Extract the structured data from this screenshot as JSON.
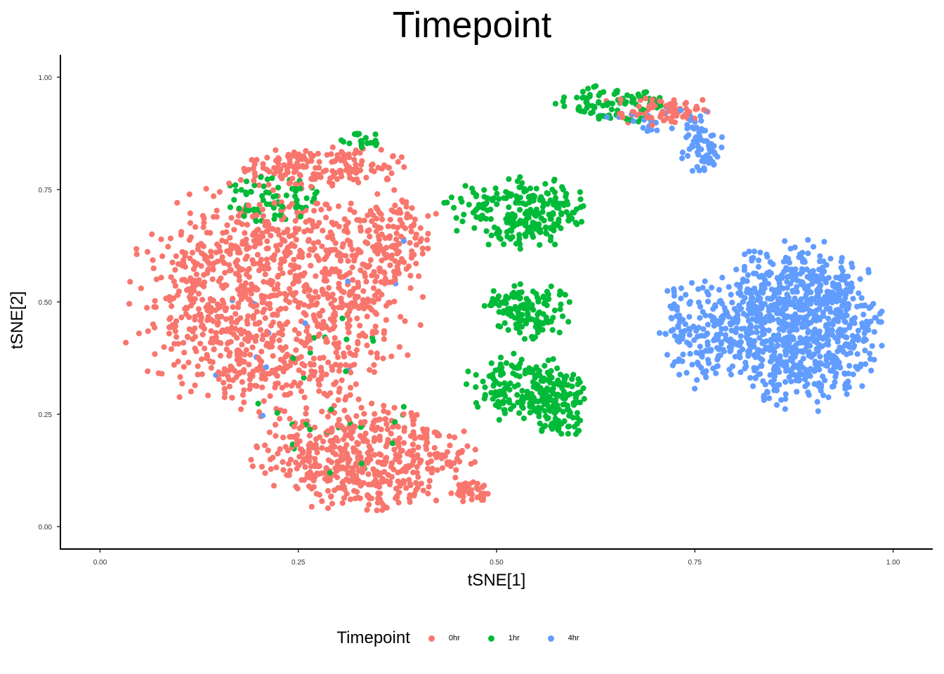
{
  "chart_data": {
    "type": "scatter",
    "title": "Timepoint",
    "xlabel": "tSNE[1]",
    "ylabel": "tSNE[2]",
    "xlim": [
      -0.05,
      1.05
    ],
    "ylim": [
      -0.05,
      1.05
    ],
    "x_ticks": [
      "0.00",
      "0.25",
      "0.50",
      "0.75",
      "1.00"
    ],
    "y_ticks": [
      "0.00",
      "0.25",
      "0.50",
      "0.75",
      "1.00"
    ],
    "grid": false,
    "legend": {
      "title": "Timepoint",
      "position": "bottom",
      "entries": [
        "0hr",
        "1hr",
        "4hr"
      ]
    },
    "series": [
      {
        "name": "0hr",
        "color": "#F8766D"
      },
      {
        "name": "1hr",
        "color": "#00BA38"
      },
      {
        "name": "4hr",
        "color": "#619CFF"
      }
    ],
    "clusters": [
      {
        "series": "0hr",
        "cx": 0.22,
        "cy": 0.5,
        "rx": 0.2,
        "ry": 0.3,
        "n": 1100
      },
      {
        "series": "0hr",
        "cx": 0.33,
        "cy": 0.15,
        "rx": 0.15,
        "ry": 0.13,
        "n": 500
      },
      {
        "series": "0hr",
        "cx": 0.28,
        "cy": 0.8,
        "rx": 0.12,
        "ry": 0.05,
        "n": 160
      },
      {
        "series": "0hr",
        "cx": 0.37,
        "cy": 0.65,
        "rx": 0.06,
        "ry": 0.12,
        "n": 120
      },
      {
        "series": "0hr",
        "cx": 0.47,
        "cy": 0.08,
        "rx": 0.03,
        "ry": 0.03,
        "n": 40
      },
      {
        "series": "0hr",
        "cx": 0.7,
        "cy": 0.93,
        "rx": 0.08,
        "ry": 0.04,
        "n": 80
      },
      {
        "series": "1hr",
        "cx": 0.53,
        "cy": 0.7,
        "rx": 0.1,
        "ry": 0.09,
        "n": 240
      },
      {
        "series": "1hr",
        "cx": 0.54,
        "cy": 0.48,
        "rx": 0.06,
        "ry": 0.07,
        "n": 130
      },
      {
        "series": "1hr",
        "cx": 0.53,
        "cy": 0.31,
        "rx": 0.08,
        "ry": 0.08,
        "n": 170
      },
      {
        "series": "1hr",
        "cx": 0.58,
        "cy": 0.27,
        "rx": 0.04,
        "ry": 0.09,
        "n": 110
      },
      {
        "series": "1hr",
        "cx": 0.22,
        "cy": 0.73,
        "rx": 0.07,
        "ry": 0.07,
        "n": 70
      },
      {
        "series": "1hr",
        "cx": 0.65,
        "cy": 0.94,
        "rx": 0.08,
        "ry": 0.05,
        "n": 90
      },
      {
        "series": "1hr",
        "cx": 0.33,
        "cy": 0.86,
        "rx": 0.03,
        "ry": 0.03,
        "n": 20
      },
      {
        "series": "1hr",
        "cx": 0.3,
        "cy": 0.3,
        "rx": 0.12,
        "ry": 0.25,
        "n": 30
      },
      {
        "series": "4hr",
        "cx": 0.88,
        "cy": 0.45,
        "rx": 0.12,
        "ry": 0.2,
        "n": 900
      },
      {
        "series": "4hr",
        "cx": 0.76,
        "cy": 0.44,
        "rx": 0.06,
        "ry": 0.14,
        "n": 160
      },
      {
        "series": "4hr",
        "cx": 0.76,
        "cy": 0.84,
        "rx": 0.03,
        "ry": 0.06,
        "n": 60
      },
      {
        "series": "4hr",
        "cx": 0.7,
        "cy": 0.9,
        "rx": 0.1,
        "ry": 0.04,
        "n": 30
      },
      {
        "series": "4hr",
        "cx": 0.3,
        "cy": 0.4,
        "rx": 0.2,
        "ry": 0.33,
        "n": 12
      }
    ]
  }
}
